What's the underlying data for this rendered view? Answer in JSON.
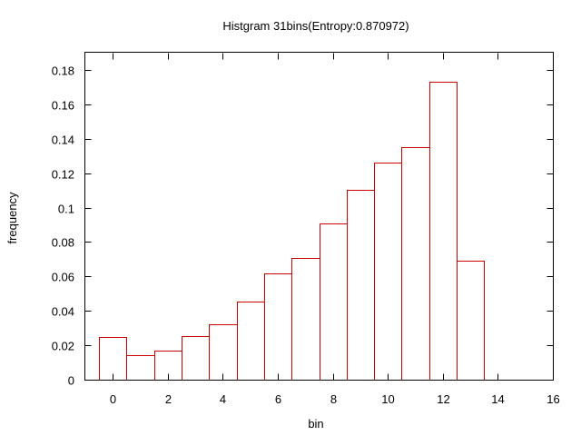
{
  "chart_data": {
    "type": "bar",
    "title": "Histgram 31bins(Entropy:0.870972)",
    "xlabel": "bin",
    "ylabel": "frequency",
    "xlim": [
      -1,
      16
    ],
    "ylim": [
      0,
      0.19
    ],
    "xticks": [
      0,
      2,
      4,
      6,
      8,
      10,
      12,
      14,
      16
    ],
    "yticks": [
      0,
      0.02,
      0.04,
      0.06,
      0.08,
      0.1,
      0.12,
      0.14,
      0.16,
      0.18
    ],
    "grid": false,
    "legend": "none",
    "bar_color": "#cc0000",
    "bar_width": 1,
    "x": [
      0,
      1,
      2,
      3,
      4,
      5,
      6,
      7,
      8,
      9,
      10,
      11,
      12,
      13
    ],
    "values": [
      0.025,
      0.0145,
      0.017,
      0.0255,
      0.032,
      0.0455,
      0.0615,
      0.0705,
      0.091,
      0.1105,
      0.126,
      0.135,
      0.173,
      0.069
    ]
  }
}
